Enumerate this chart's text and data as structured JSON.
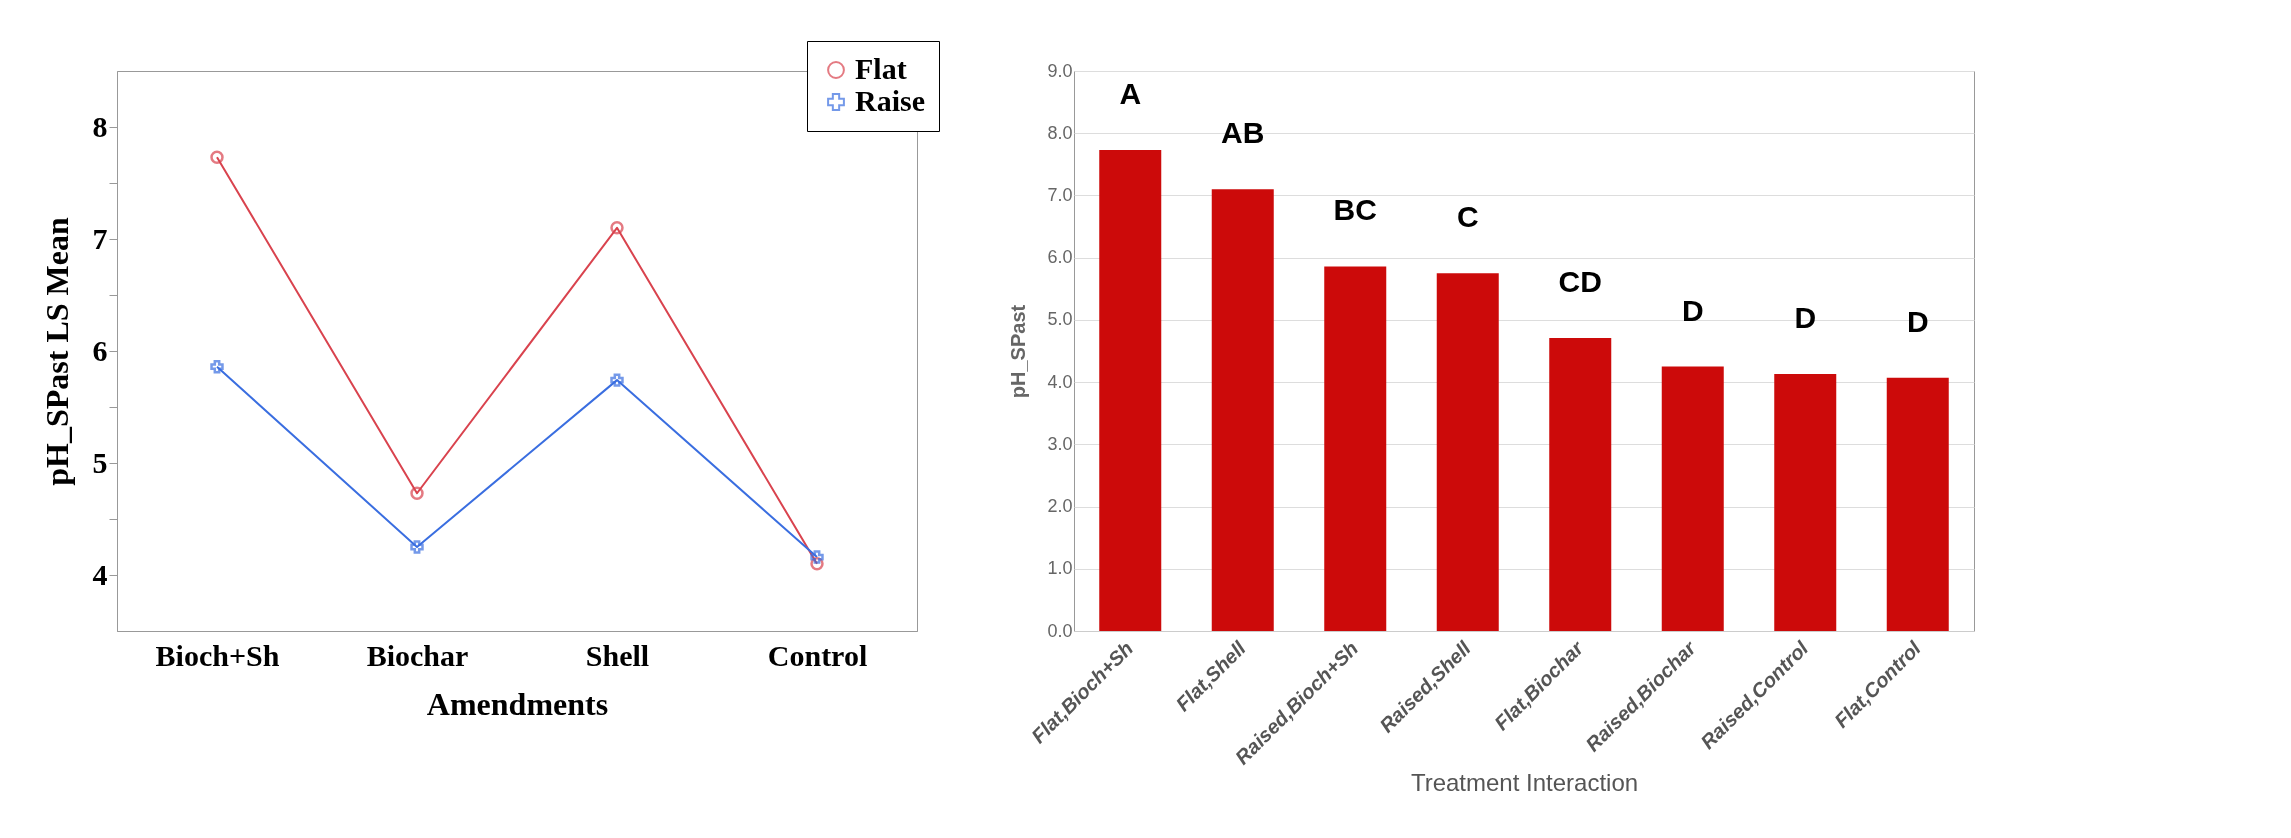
{
  "chart_data": [
    {
      "type": "line",
      "xlabel": "Amendments",
      "ylabel": "pH_SPast LS Mean",
      "categories": [
        "Bioch+Sh",
        "Biochar",
        "Shell",
        "Control"
      ],
      "ylim": [
        3.5,
        8.5
      ],
      "yticks": [
        4,
        {
          "value": 4.5,
          "label": null
        },
        5,
        {
          "value": 5.5,
          "label": null
        },
        6,
        {
          "value": 6.5,
          "label": null
        },
        7,
        {
          "value": 7.5,
          "label": null
        },
        8
      ],
      "grid": false,
      "legend": "top right",
      "line_style": "solid",
      "series": [
        {
          "name": "Flat",
          "color": "#d9434e",
          "marker": "circle",
          "values": [
            7.73,
            4.73,
            7.1,
            4.1
          ]
        },
        {
          "name": "Raise",
          "color": "#3a6ee0",
          "marker": "cross",
          "values": [
            5.86,
            4.25,
            5.74,
            4.16
          ]
        }
      ]
    },
    {
      "type": "bar",
      "xlabel": "Treatment Interaction",
      "ylabel": "pH_SPast",
      "categories": [
        "Flat,Bioch+Sh",
        "Flat,Shell",
        "Raised,Bioch+Sh",
        "Raised,Shell",
        "Flat,Biochar",
        "Raised,Biochar",
        "Raised,Control",
        "Flat,Control"
      ],
      "values": [
        7.73,
        7.1,
        5.86,
        5.75,
        4.71,
        4.25,
        4.13,
        4.07
      ],
      "color": "#cc0a0a",
      "ylim": [
        0,
        9
      ],
      "yticks": [
        {
          "value": 0,
          "label": "0.0"
        },
        {
          "value": 1,
          "label": "1.0"
        },
        {
          "value": 2,
          "label": "2.0"
        },
        {
          "value": 3,
          "label": "3.0"
        },
        {
          "value": 4,
          "label": "4.0"
        },
        {
          "value": 5,
          "label": "5.0"
        },
        {
          "value": 6,
          "label": "6.0"
        },
        {
          "value": 7,
          "label": "7.0"
        },
        {
          "value": 8,
          "label": "8.0"
        },
        {
          "value": 9,
          "label": "9.0"
        }
      ],
      "grid": "y",
      "annotations": [
        "A",
        "AB",
        "BC",
        "C",
        "CD",
        "D",
        "D",
        "D"
      ]
    }
  ]
}
